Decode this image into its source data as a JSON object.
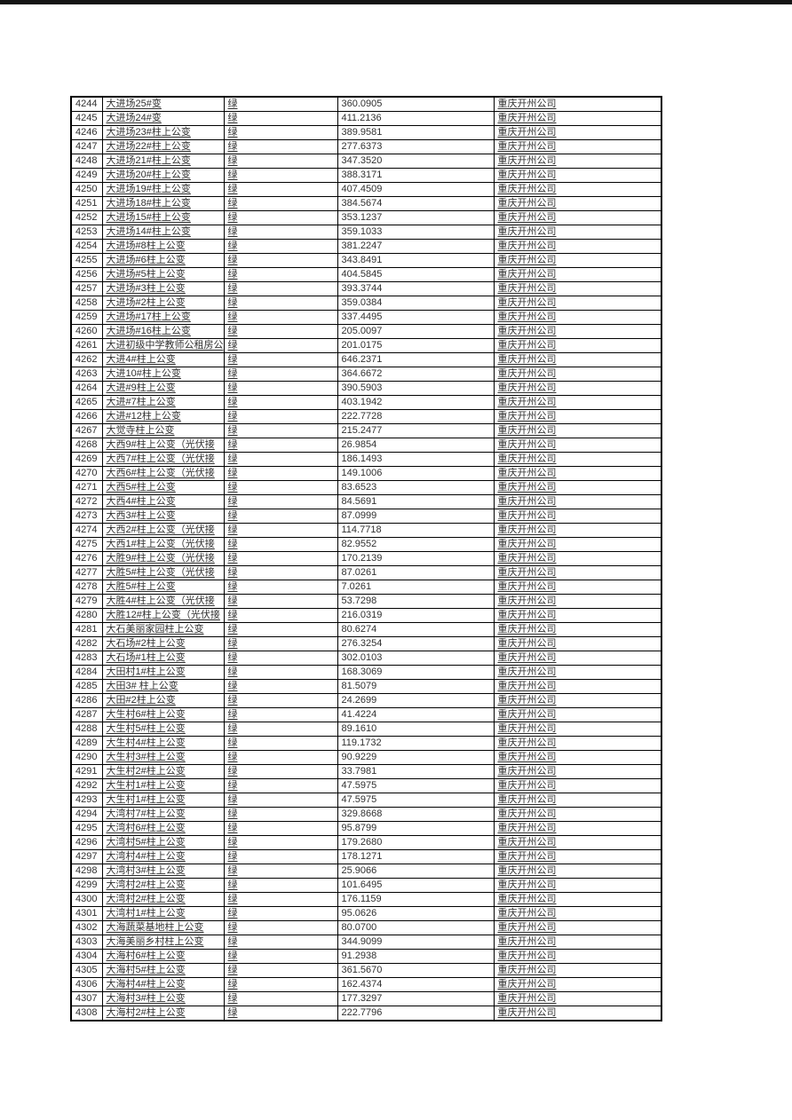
{
  "page": {
    "background_color": "#ffffff",
    "top_bar_color": "#141414",
    "text_color": "#303030"
  },
  "table": {
    "column_names": [
      "row-number-cell",
      "name-cell",
      "status-cell",
      "value-cell",
      "company-cell"
    ],
    "status_label": "绿",
    "company_label": "重庆开州公司",
    "rows": [
      [
        "4244",
        "大进场25#变",
        "绿",
        "360.0905",
        "重庆开州公司"
      ],
      [
        "4245",
        "大进场24#变",
        "绿",
        "411.2136",
        "重庆开州公司"
      ],
      [
        "4246",
        "大进场23#柱上公变",
        "绿",
        "389.9581",
        "重庆开州公司"
      ],
      [
        "4247",
        "大进场22#柱上公变",
        "绿",
        "277.6373",
        "重庆开州公司"
      ],
      [
        "4248",
        "大进场21#柱上公变",
        "绿",
        "347.3520",
        "重庆开州公司"
      ],
      [
        "4249",
        "大进场20#柱上公变",
        "绿",
        "388.3171",
        "重庆开州公司"
      ],
      [
        "4250",
        "大进场19#柱上公变",
        "绿",
        "407.4509",
        "重庆开州公司"
      ],
      [
        "4251",
        "大进场18#柱上公变",
        "绿",
        "384.5674",
        "重庆开州公司"
      ],
      [
        "4252",
        "大进场15#柱上公变",
        "绿",
        "353.1237",
        "重庆开州公司"
      ],
      [
        "4253",
        "大进场14#柱上公变",
        "绿",
        "359.1033",
        "重庆开州公司"
      ],
      [
        "4254",
        "大进场#8柱上公变",
        "绿",
        "381.2247",
        "重庆开州公司"
      ],
      [
        "4255",
        "大进场#6柱上公变",
        "绿",
        "343.8491",
        "重庆开州公司"
      ],
      [
        "4256",
        "大进场#5柱上公变",
        "绿",
        "404.5845",
        "重庆开州公司"
      ],
      [
        "4257",
        "大进场#3柱上公变",
        "绿",
        "393.3744",
        "重庆开州公司"
      ],
      [
        "4258",
        "大进场#2柱上公变",
        "绿",
        "359.0384",
        "重庆开州公司"
      ],
      [
        "4259",
        "大进场#17柱上公变",
        "绿",
        "337.4495",
        "重庆开州公司"
      ],
      [
        "4260",
        "大进场#16柱上公变",
        "绿",
        "205.0097",
        "重庆开州公司"
      ],
      [
        "4261",
        "大进初级中学教师公租房公",
        "绿",
        "201.0175",
        "重庆开州公司"
      ],
      [
        "4262",
        "大进4#柱上公变",
        "绿",
        "646.2371",
        "重庆开州公司"
      ],
      [
        "4263",
        "大进10#柱上公变",
        "绿",
        "364.6672",
        "重庆开州公司"
      ],
      [
        "4264",
        "大进#9柱上公变",
        "绿",
        "390.5903",
        "重庆开州公司"
      ],
      [
        "4265",
        "大进#7柱上公变",
        "绿",
        "403.1942",
        "重庆开州公司"
      ],
      [
        "4266",
        "大进#12柱上公变",
        "绿",
        "222.7728",
        "重庆开州公司"
      ],
      [
        "4267",
        "大觉寺柱上公变",
        "绿",
        "215.2477",
        "重庆开州公司"
      ],
      [
        "4268",
        "大西9#柱上公变（光伏接",
        "绿",
        "26.9854",
        "重庆开州公司"
      ],
      [
        "4269",
        "大西7#柱上公变（光伏接",
        "绿",
        "186.1493",
        "重庆开州公司"
      ],
      [
        "4270",
        "大西6#柱上公变（光伏接",
        "绿",
        "149.1006",
        "重庆开州公司"
      ],
      [
        "4271",
        "大西5#柱上公变",
        "绿",
        "83.6523",
        "重庆开州公司"
      ],
      [
        "4272",
        "大西4#柱上公变",
        "绿",
        "84.5691",
        "重庆开州公司"
      ],
      [
        "4273",
        "大西3#柱上公变",
        "绿",
        "87.0999",
        "重庆开州公司"
      ],
      [
        "4274",
        "大西2#柱上公变（光伏接",
        "绿",
        "114.7718",
        "重庆开州公司"
      ],
      [
        "4275",
        "大西1#柱上公变（光伏接",
        "绿",
        "82.9552",
        "重庆开州公司"
      ],
      [
        "4276",
        "大胜9#柱上公变（光伏接",
        "绿",
        "170.2139",
        "重庆开州公司"
      ],
      [
        "4277",
        "大胜5#柱上公变（光伏接",
        "绿",
        "87.0261",
        "重庆开州公司"
      ],
      [
        "4278",
        "大胜5#柱上公变",
        "绿",
        "7.0261",
        "重庆开州公司"
      ],
      [
        "4279",
        "大胜4#柱上公变（光伏接",
        "绿",
        "53.7298",
        "重庆开州公司"
      ],
      [
        "4280",
        "大胜12#柱上公变（光伏接",
        "绿",
        "216.0319",
        "重庆开州公司"
      ],
      [
        "4281",
        "大石美丽家园柱上公变",
        "绿",
        "80.6274",
        "重庆开州公司"
      ],
      [
        "4282",
        "大石场#2柱上公变",
        "绿",
        "276.3254",
        "重庆开州公司"
      ],
      [
        "4283",
        "大石场#1柱上公变",
        "绿",
        "302.0103",
        "重庆开州公司"
      ],
      [
        "4284",
        "大田村1#柱上公变",
        "绿",
        "168.3069",
        "重庆开州公司"
      ],
      [
        "4285",
        "大田3# 柱上公变",
        "绿",
        "81.5079",
        "重庆开州公司"
      ],
      [
        "4286",
        "大田#2柱上公变",
        "绿",
        "24.2699",
        "重庆开州公司"
      ],
      [
        "4287",
        "大生村6#柱上公变",
        "绿",
        "41.4224",
        "重庆开州公司"
      ],
      [
        "4288",
        "大生村5#柱上公变",
        "绿",
        "89.1610",
        "重庆开州公司"
      ],
      [
        "4289",
        "大生村4#柱上公变",
        "绿",
        "119.1732",
        "重庆开州公司"
      ],
      [
        "4290",
        "大生村3#柱上公变",
        "绿",
        "90.9229",
        "重庆开州公司"
      ],
      [
        "4291",
        "大生村2#柱上公变",
        "绿",
        "33.7981",
        "重庆开州公司"
      ],
      [
        "4292",
        "大生村1#柱上公变",
        "绿",
        "47.5975",
        "重庆开州公司"
      ],
      [
        "4293",
        "大生村1#柱上公变",
        "绿",
        "47.5975",
        "重庆开州公司"
      ],
      [
        "4294",
        "大湾村7#柱上公变",
        "绿",
        "329.8668",
        "重庆开州公司"
      ],
      [
        "4295",
        "大湾村6#柱上公变",
        "绿",
        "95.8799",
        "重庆开州公司"
      ],
      [
        "4296",
        "大湾村5#柱上公变",
        "绿",
        "179.2680",
        "重庆开州公司"
      ],
      [
        "4297",
        "大湾村4#柱上公变",
        "绿",
        "178.1271",
        "重庆开州公司"
      ],
      [
        "4298",
        "大湾村3#柱上公变",
        "绿",
        "25.9066",
        "重庆开州公司"
      ],
      [
        "4299",
        "大湾村2#柱上公变",
        "绿",
        "101.6495",
        "重庆开州公司"
      ],
      [
        "4300",
        "大湾村2#柱上公变",
        "绿",
        "176.1159",
        "重庆开州公司"
      ],
      [
        "4301",
        "大湾村1#柱上公变",
        "绿",
        "95.0626",
        "重庆开州公司"
      ],
      [
        "4302",
        "大海蔬菜基地柱上公变",
        "绿",
        "80.0700",
        "重庆开州公司"
      ],
      [
        "4303",
        "大海美丽乡村柱上公变",
        "绿",
        "344.9099",
        "重庆开州公司"
      ],
      [
        "4304",
        "大海村6#柱上公变",
        "绿",
        "91.2938",
        "重庆开州公司"
      ],
      [
        "4305",
        "大海村5#柱上公变",
        "绿",
        "361.5670",
        "重庆开州公司"
      ],
      [
        "4306",
        "大海村4#柱上公变",
        "绿",
        "162.4374",
        "重庆开州公司"
      ],
      [
        "4307",
        "大海村3#柱上公变",
        "绿",
        "177.3297",
        "重庆开州公司"
      ],
      [
        "4308",
        "大海村2#柱上公变",
        "绿",
        "222.7796",
        "重庆开州公司"
      ]
    ]
  }
}
